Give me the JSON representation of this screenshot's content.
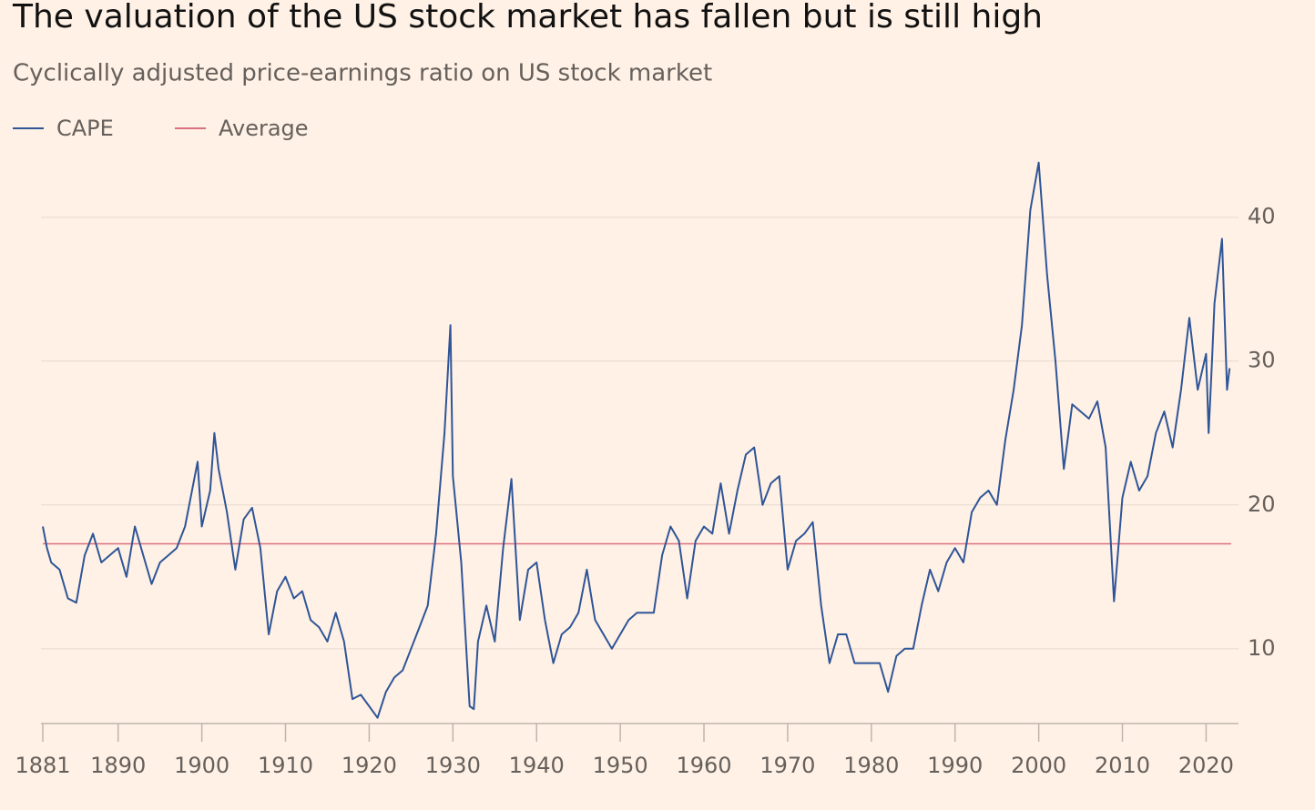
{
  "chart_data": {
    "type": "line",
    "title": "The valuation of the US stock market has fallen but is still high",
    "subtitle": "Cyclically adjusted price-earnings ratio on US stock market",
    "x": [
      1881,
      1881.5,
      1882,
      1883,
      1884,
      1885,
      1886,
      1887,
      1888,
      1889,
      1890,
      1891,
      1892,
      1893,
      1894,
      1895,
      1896,
      1897,
      1898,
      1899,
      1899.5,
      1900,
      1901,
      1901.5,
      1902,
      1903,
      1904,
      1905,
      1906,
      1907,
      1908,
      1909,
      1910,
      1911,
      1912,
      1913,
      1914,
      1915,
      1916,
      1917,
      1918,
      1919,
      1920,
      1921,
      1922,
      1923,
      1924,
      1925,
      1926,
      1927,
      1928,
      1929,
      1929.7,
      1930,
      1931,
      1932,
      1932.5,
      1933,
      1934,
      1935,
      1936,
      1937,
      1938,
      1939,
      1940,
      1941,
      1942,
      1943,
      1944,
      1945,
      1946,
      1947,
      1948,
      1949,
      1950,
      1951,
      1952,
      1953,
      1954,
      1955,
      1956,
      1957,
      1958,
      1959,
      1960,
      1961,
      1962,
      1963,
      1964,
      1965,
      1966,
      1967,
      1968,
      1969,
      1970,
      1971,
      1972,
      1973,
      1974,
      1975,
      1976,
      1977,
      1978,
      1979,
      1980,
      1981,
      1982,
      1983,
      1984,
      1985,
      1986,
      1987,
      1988,
      1989,
      1990,
      1991,
      1992,
      1993,
      1994,
      1995,
      1996,
      1997,
      1998,
      1999,
      2000,
      2001,
      2002,
      2003,
      2004,
      2005,
      2006,
      2007,
      2008,
      2009,
      2010,
      2011,
      2012,
      2013,
      2014,
      2015,
      2016,
      2017,
      2018,
      2019,
      2020,
      2020.3,
      2020.7,
      2021,
      2021.9,
      2022.5,
      2022.8
    ],
    "series": [
      {
        "name": "CAPE",
        "color": "#2f5597",
        "values": [
          18.5,
          17,
          16,
          15.5,
          13.5,
          13.2,
          16.5,
          18,
          16,
          16.5,
          17,
          15,
          18.5,
          16.5,
          14.5,
          16,
          16.5,
          17,
          18.5,
          21.5,
          23,
          18.5,
          21,
          25,
          22.5,
          19.5,
          15.5,
          19,
          19.8,
          17,
          11,
          14,
          15,
          13.5,
          14,
          12,
          11.5,
          10.5,
          12.5,
          10.5,
          6.5,
          6.8,
          6,
          5.2,
          7,
          8,
          8.5,
          10,
          11.5,
          13,
          18,
          25,
          32.5,
          22,
          16,
          6,
          5.8,
          10.5,
          13,
          10.5,
          17,
          21.8,
          12,
          15.5,
          16,
          12,
          9,
          11,
          11.5,
          12.5,
          15.5,
          12,
          11,
          10,
          11,
          12,
          12.5,
          12.5,
          12.5,
          16.5,
          18.5,
          17.5,
          13.5,
          17.5,
          18.5,
          18,
          21.5,
          18,
          21,
          23.5,
          24,
          20,
          21.5,
          22,
          15.5,
          17.5,
          18,
          18.8,
          13,
          9,
          11,
          11,
          9,
          9,
          9,
          9,
          7,
          9.5,
          10,
          10,
          13,
          15.5,
          14,
          16,
          17,
          16,
          19.5,
          20.5,
          21,
          20,
          24.5,
          28,
          32.5,
          40.5,
          43.8,
          36,
          30,
          22.5,
          27,
          26.5,
          26,
          27.2,
          24,
          13.3,
          20.5,
          23,
          21,
          22,
          25,
          26.5,
          24,
          28,
          33,
          28,
          30.5,
          25,
          30,
          34,
          38.5,
          28,
          29.5
        ]
      }
    ],
    "reference_line": {
      "name": "Average",
      "value": 17.3,
      "color": "#d9707f"
    },
    "xlim": [
      1881,
      2023
    ],
    "xticks": [
      1881,
      1890,
      1900,
      1910,
      1920,
      1930,
      1940,
      1950,
      1960,
      1970,
      1980,
      1990,
      2000,
      2010,
      2020
    ],
    "ylim": [
      4.8,
      44.6
    ],
    "yticks": [
      10,
      20,
      30,
      40
    ],
    "grid": true
  }
}
